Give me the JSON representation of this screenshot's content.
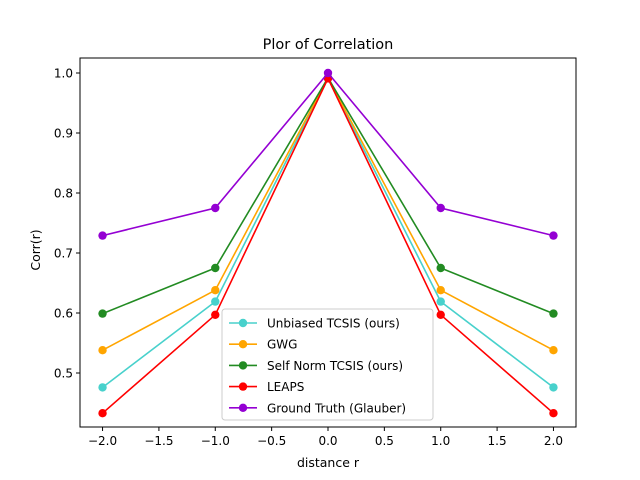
{
  "chart_data": {
    "type": "line",
    "title": "Plor of Correlation",
    "xlabel": "distance r",
    "ylabel": "Corr(r)",
    "xlim": [
      -2.2,
      2.2
    ],
    "ylim": [
      0.41,
      1.025
    ],
    "x": [
      -2.0,
      -1.0,
      0.0,
      1.0,
      2.0
    ],
    "xticks": [
      -2.0,
      -1.5,
      -1.0,
      -0.5,
      0.0,
      0.5,
      1.0,
      1.5,
      2.0
    ],
    "xtick_labels": [
      "−2.0",
      "−1.5",
      "−1.0",
      "−0.5",
      "0.0",
      "0.5",
      "1.0",
      "1.5",
      "2.0"
    ],
    "yticks": [
      0.5,
      0.6,
      0.7,
      0.8,
      0.9,
      1.0
    ],
    "ytick_labels": [
      "0.5",
      "0.6",
      "0.7",
      "0.8",
      "0.9",
      "1.0"
    ],
    "grid": false,
    "legend_position": "lower-center",
    "series": [
      {
        "name": "Unbiased TCSIS (ours)",
        "color": "#48d1cc",
        "values": [
          0.476,
          0.619,
          0.991,
          0.619,
          0.476
        ]
      },
      {
        "name": "GWG",
        "color": "#ffa500",
        "values": [
          0.538,
          0.638,
          0.992,
          0.638,
          0.538
        ]
      },
      {
        "name": "Self Norm TCSIS (ours)",
        "color": "#228b22",
        "values": [
          0.599,
          0.675,
          0.992,
          0.675,
          0.599
        ]
      },
      {
        "name": "LEAPS",
        "color": "#ff0000",
        "values": [
          0.433,
          0.597,
          0.991,
          0.597,
          0.433
        ]
      },
      {
        "name": "Ground Truth (Glauber)",
        "color": "#9400d3",
        "values": [
          0.729,
          0.775,
          1.0,
          0.775,
          0.729
        ]
      }
    ]
  }
}
